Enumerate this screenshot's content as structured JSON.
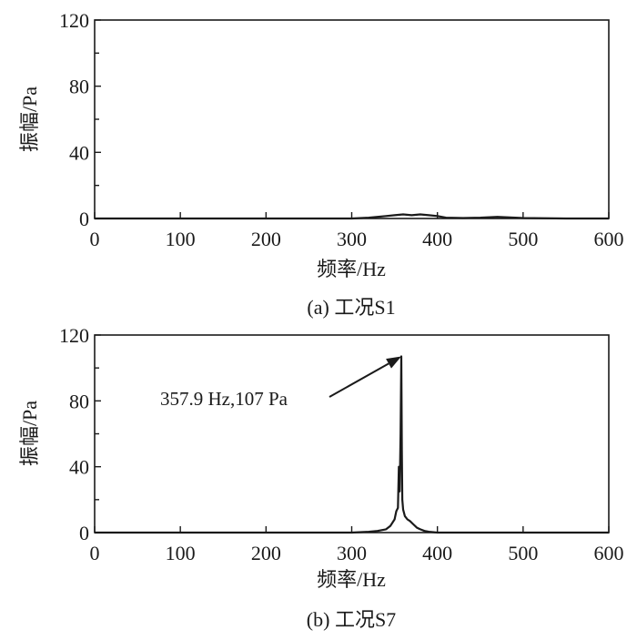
{
  "chart_data": [
    {
      "type": "line",
      "caption": "(a) 工况S1",
      "xlabel": "频率/Hz",
      "ylabel": "振幅/Pa",
      "xlim": [
        0,
        600
      ],
      "ylim": [
        0,
        120
      ],
      "xticks": [
        0,
        100,
        200,
        300,
        400,
        500,
        600
      ],
      "yticks": [
        0,
        40,
        80,
        120
      ],
      "grid": false,
      "series": [
        {
          "x": [
            0,
            50,
            100,
            150,
            200,
            250,
            300,
            320,
            340,
            350,
            360,
            370,
            380,
            390,
            400,
            410,
            430,
            450,
            470,
            500,
            550,
            600
          ],
          "y": [
            0,
            0,
            0,
            0,
            0,
            0,
            0,
            0.5,
            1.5,
            2,
            2.5,
            2,
            2.5,
            2,
            1.5,
            0.5,
            0.3,
            0.5,
            1,
            0.3,
            0,
            0
          ]
        }
      ]
    },
    {
      "type": "line",
      "caption": "(b) 工况S7",
      "xlabel": "频率/Hz",
      "ylabel": "振幅/Pa",
      "xlim": [
        0,
        600
      ],
      "ylim": [
        0,
        120
      ],
      "xticks": [
        0,
        100,
        200,
        300,
        400,
        500,
        600
      ],
      "yticks": [
        0,
        40,
        80,
        120
      ],
      "grid": false,
      "annotation": {
        "text": "357.9 Hz,107 Pa",
        "x": 357.9,
        "y": 107
      },
      "series": [
        {
          "x": [
            0,
            300,
            320,
            330,
            340,
            345,
            350,
            352,
            354,
            355,
            356,
            357,
            357.9,
            358.5,
            359,
            360,
            362,
            365,
            368,
            372,
            376,
            380,
            385,
            390,
            400,
            600
          ],
          "y": [
            0,
            0,
            0.5,
            1,
            2,
            4,
            8,
            13,
            15,
            40,
            25,
            60,
            107,
            50,
            20,
            14,
            10,
            8,
            7,
            5,
            3,
            2,
            1,
            0.5,
            0,
            0
          ]
        }
      ]
    }
  ]
}
